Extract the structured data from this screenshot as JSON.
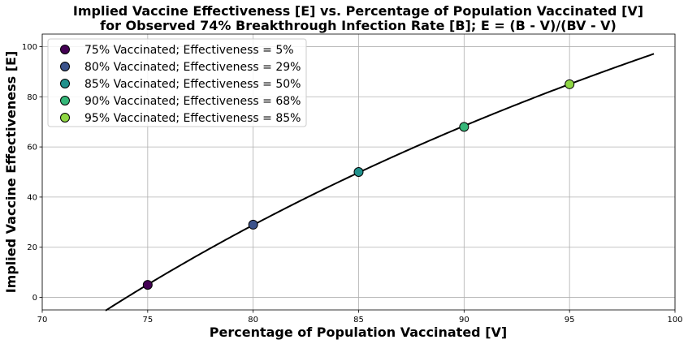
{
  "chart_data": {
    "type": "line",
    "title": [
      "Implied Vaccine Effectiveness [E] vs. Percentage of Population Vaccinated [V]",
      "for Observed 74% Breakthrough Infection Rate [B]; E = (B - V)/(BV - V)"
    ],
    "xlabel": "Percentage of Population Vaccinated [V]",
    "ylabel": "Implied Vaccine Effectiveness [E]",
    "xlim": [
      70,
      100
    ],
    "ylim": [
      -5,
      105
    ],
    "xticks": [
      70,
      75,
      80,
      85,
      90,
      95,
      100
    ],
    "yticks": [
      0,
      20,
      40,
      60,
      80,
      100
    ],
    "grid": true,
    "legend_position": "top-left",
    "curve": {
      "breakthrough_rate": 0.74,
      "x_range": [
        73,
        99
      ],
      "color": "#000000"
    },
    "points": [
      {
        "x": 75,
        "y": 5,
        "label": "75% Vaccinated; Effectiveness = 5%",
        "color": "#440154"
      },
      {
        "x": 80,
        "y": 29,
        "label": "80% Vaccinated; Effectiveness = 29%",
        "color": "#3b528b"
      },
      {
        "x": 85,
        "y": 50,
        "label": "85% Vaccinated; Effectiveness = 50%",
        "color": "#21918c"
      },
      {
        "x": 90,
        "y": 68,
        "label": "90% Vaccinated; Effectiveness = 68%",
        "color": "#35b779"
      },
      {
        "x": 95,
        "y": 85,
        "label": "95% Vaccinated; Effectiveness = 85%",
        "color": "#8fd744"
      }
    ]
  }
}
